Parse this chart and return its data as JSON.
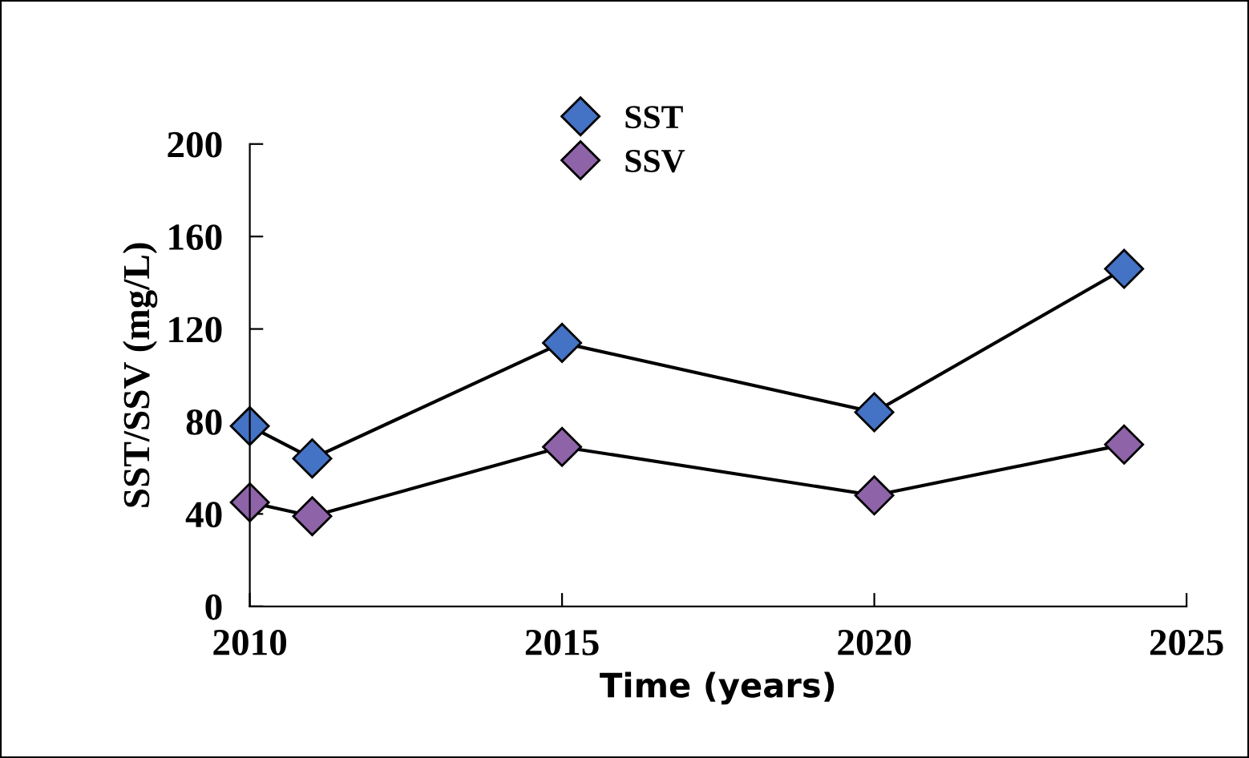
{
  "chart_data": {
    "type": "line",
    "xlabel": "Time (years)",
    "ylabel": "SST/SSV (mg/L)",
    "x": [
      2010,
      2011,
      2015,
      2020,
      2024
    ],
    "series": [
      {
        "name": "SST",
        "color": "#4472c4",
        "values": [
          78,
          64,
          114,
          84,
          146
        ]
      },
      {
        "name": "SSV",
        "color": "#8e63a8",
        "values": [
          45,
          39,
          69,
          48,
          70
        ]
      }
    ],
    "xlim": [
      2010,
      2025
    ],
    "xticks": [
      2010,
      2015,
      2020,
      2025
    ],
    "ylim": [
      0,
      200
    ],
    "yticks": [
      0,
      40,
      80,
      120,
      160,
      200
    ],
    "marker": "diamond",
    "line_style": "solid",
    "legend": "top",
    "grid": false
  }
}
